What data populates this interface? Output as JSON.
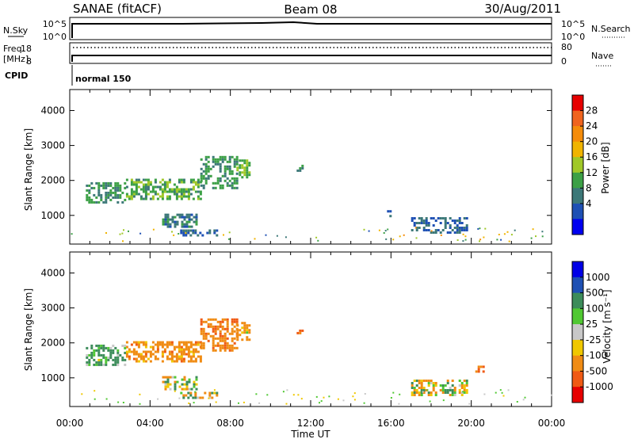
{
  "header": {
    "station": "SANAE (fitACF)",
    "beam": "Beam 08",
    "date": "30/Aug/2011"
  },
  "noise_panel": {
    "left_label": "N.Sky",
    "left_ticks": [
      "10^5",
      "10^0"
    ],
    "right_label": "N.Search",
    "right_ticks": [
      "10^5",
      "10^0"
    ]
  },
  "freq_panel": {
    "label_line1": "Freq.",
    "label_line2": "[MHz]",
    "left_ticks": [
      "18",
      "8"
    ],
    "right_label": "Nave",
    "right_ticks": [
      "80",
      "0"
    ]
  },
  "cpid": {
    "label": "CPID",
    "value": "normal 150"
  },
  "axes": {
    "xlabel": "Time UT",
    "x_ticks": [
      "00:00",
      "04:00",
      "08:00",
      "12:00",
      "16:00",
      "20:00",
      "00:00"
    ],
    "ylabel": "Slant Range [km]",
    "y_ticks": [
      "4000",
      "3000",
      "2000",
      "1000"
    ]
  },
  "colorbars": {
    "power": {
      "label": "Power [dB]",
      "ticks": [
        "28",
        "24",
        "20",
        "16",
        "12",
        "8",
        "4"
      ],
      "colors": [
        "#e60000",
        "#f0641e",
        "#f58c0a",
        "#f0b400",
        "#a0c828",
        "#3ca046",
        "#3c7878",
        "#1e50b4",
        "#0000f0"
      ]
    },
    "velocity": {
      "label": "Velocity [m s⁻¹]",
      "ticks": [
        "1000",
        "500",
        "100",
        "25",
        "-25",
        "-100",
        "-500",
        "-1000"
      ],
      "colors": [
        "#0000e6",
        "#1e50b4",
        "#3c8c5a",
        "#50c832",
        "#c8c8c8",
        "#f0c800",
        "#f08c14",
        "#f05a14",
        "#e60000"
      ]
    }
  },
  "chart_data": {
    "type": "heatmap",
    "title": "SANAE (fitACF)",
    "xlabel": "Time UT",
    "ylabel": "Slant Range [km]",
    "xlim_hours": [
      0,
      24
    ],
    "ylim_km": [
      180,
      4600
    ],
    "power_panel": [
      {
        "t0": 0.8,
        "t1": 2.8,
        "r0": 1350,
        "r1": 1950,
        "value_db": 10
      },
      {
        "t0": 2.8,
        "t1": 6.5,
        "r0": 1450,
        "r1": 2050,
        "value_db": 12
      },
      {
        "t0": 6.5,
        "t1": 8.3,
        "r0": 1800,
        "r1": 2700,
        "value_db": 10
      },
      {
        "t0": 8.3,
        "t1": 9.0,
        "r0": 2100,
        "r1": 2600,
        "value_db": 14
      },
      {
        "t0": 4.6,
        "t1": 6.3,
        "r0": 650,
        "r1": 1050,
        "value_db": 8
      },
      {
        "t0": 5.5,
        "t1": 7.3,
        "r0": 400,
        "r1": 600,
        "value_db": 6
      },
      {
        "t0": 11.3,
        "t1": 11.6,
        "r0": 2250,
        "r1": 2450,
        "value_db": 10
      },
      {
        "t0": 17.0,
        "t1": 19.8,
        "r0": 500,
        "r1": 950,
        "value_db": 6
      },
      {
        "t0": 15.8,
        "t1": 16.0,
        "r0": 1000,
        "r1": 1150,
        "value_db": 4
      }
    ],
    "velocity_panel": [
      {
        "t0": 0.8,
        "t1": 2.8,
        "r0": 1350,
        "r1": 1950,
        "value_ms": 200
      },
      {
        "t0": 2.8,
        "t1": 6.5,
        "r0": 1450,
        "r1": 2050,
        "value_ms": -300
      },
      {
        "t0": 6.5,
        "t1": 8.3,
        "r0": 1800,
        "r1": 2700,
        "value_ms": -400
      },
      {
        "t0": 8.3,
        "t1": 9.0,
        "r0": 2100,
        "r1": 2600,
        "value_ms": -200
      },
      {
        "t0": 4.6,
        "t1": 6.3,
        "r0": 650,
        "r1": 1050,
        "value_ms": 0
      },
      {
        "t0": 5.5,
        "t1": 7.3,
        "r0": 400,
        "r1": 600,
        "value_ms": 0
      },
      {
        "t0": 11.3,
        "t1": 11.6,
        "r0": 2250,
        "r1": 2450,
        "value_ms": -600
      },
      {
        "t0": 17.0,
        "t1": 19.8,
        "r0": 500,
        "r1": 950,
        "value_ms": -50
      },
      {
        "t0": 20.2,
        "t1": 20.6,
        "r0": 1150,
        "r1": 1350,
        "value_ms": -600
      }
    ]
  }
}
